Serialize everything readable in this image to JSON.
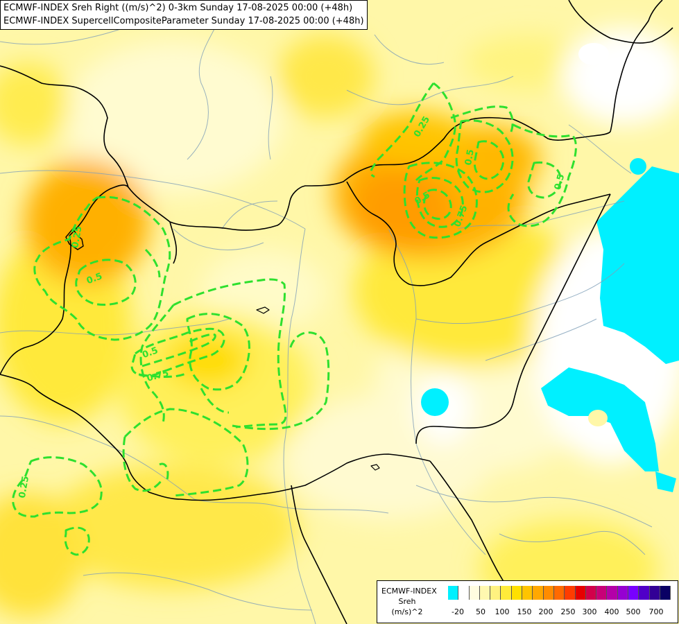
{
  "title": {
    "line1": "ECMWF-INDEX Sreh Right ((m/s)^2) 0-3km Sunday 17-08-2025 00:00 (+48h)",
    "line2": "ECMWF-INDEX SupercellCompositeParameter Sunday 17-08-2025 00:00 (+48h)"
  },
  "contour_labels": [
    "0.25",
    "0.5",
    "0.5",
    "0.75",
    "0.5",
    "0.5",
    "0.75",
    "0.5",
    "0.25",
    "0.25"
  ],
  "legend": {
    "model": "ECMWF-INDEX",
    "param": "Sreh",
    "unit": "(m/s)^2",
    "colors": [
      "#00f0ff",
      "#ffffff",
      "#fffde0",
      "#fff8b0",
      "#fff280",
      "#ffeb3a",
      "#ffe000",
      "#ffc400",
      "#ffa800",
      "#ff8c00",
      "#ff6a00",
      "#ff3c00",
      "#e60000",
      "#d2004b",
      "#c80078",
      "#b400a8",
      "#9600d2",
      "#7800ff",
      "#5000c8",
      "#320096",
      "#0a0064"
    ],
    "ticks": [
      "-20",
      "50",
      "100",
      "150",
      "200",
      "250",
      "300",
      "400",
      "500",
      "700"
    ]
  }
}
